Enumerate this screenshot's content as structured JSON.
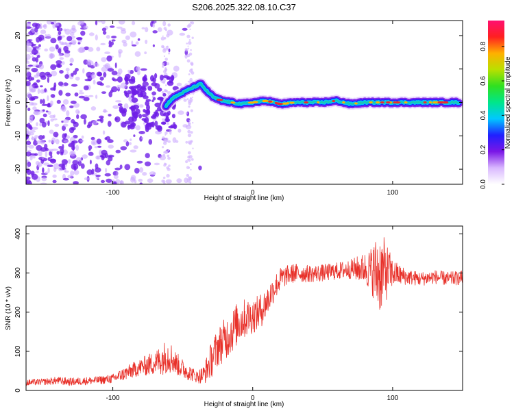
{
  "title": "S206.2025.322.08.10.C37",
  "colors": {
    "axis": "#000000",
    "trace": "#e8312a",
    "scatter": "#6f1fe6",
    "ridge_core": "#18c8b4",
    "ridge_peak": "#ef2a2a",
    "background": "#ffffff"
  },
  "chart_data": [
    {
      "type": "heatmap",
      "name": "spectrogram",
      "xlabel": "Height of straight line (km)",
      "ylabel": "Frequency (Hz)",
      "xlim": [
        -162,
        150
      ],
      "ylim": [
        -24.5,
        24.5
      ],
      "xticks": [
        -100,
        0,
        100
      ],
      "xtick_labels": [
        "-100",
        "0",
        "100"
      ],
      "yticks": [
        -20,
        -10,
        0,
        10,
        20
      ],
      "ytick_labels": [
        "-20",
        "-10",
        "0",
        "10",
        "20"
      ],
      "ridge": {
        "x": [
          -62,
          -58,
          -52,
          -45,
          -40,
          -37,
          -33,
          -28,
          -22,
          -15,
          -8,
          0,
          10,
          20,
          30,
          40,
          50,
          60,
          70,
          80,
          90,
          100,
          110,
          120,
          130,
          140,
          148
        ],
        "y": [
          -1,
          1,
          2.5,
          4,
          5,
          5.5,
          3.5,
          1.5,
          0.5,
          0,
          -0.5,
          0,
          0.5,
          -0.5,
          0,
          0,
          0,
          0.5,
          -0.5,
          0,
          0,
          0,
          0,
          0,
          0,
          0,
          0
        ]
      },
      "colorbar": {
        "label": "Normalized spectral amplitude",
        "range": [
          0,
          0.95
        ],
        "ticks": [
          0,
          0.2,
          0.4,
          0.6,
          0.8
        ],
        "tick_labels": [
          "0.0",
          "0.2",
          "0.4",
          "0.6",
          "0.8"
        ],
        "stops": [
          "#ffffff",
          "#d9b8ff",
          "#7a16e6",
          "#2020ff",
          "#00c8ff",
          "#00e68a",
          "#30e020",
          "#b8e000",
          "#ffb000",
          "#ff2020",
          "#ff1070"
        ]
      }
    },
    {
      "type": "line",
      "name": "snr",
      "xlabel": "Height of straight line (km)",
      "ylabel": "SNR (10 * v/v)",
      "xlim": [
        -162,
        150
      ],
      "ylim": [
        0,
        420
      ],
      "xticks": [
        -100,
        0,
        100
      ],
      "xtick_labels": [
        "-100",
        "0",
        "100"
      ],
      "yticks": [
        0,
        100,
        200,
        300,
        400
      ],
      "ytick_labels": [
        "0",
        "100",
        "200",
        "300",
        "400"
      ],
      "series": [
        {
          "name": "SNR",
          "x": [
            -162,
            -150,
            -140,
            -130,
            -120,
            -110,
            -100,
            -90,
            -80,
            -75,
            -70,
            -65,
            -60,
            -55,
            -50,
            -45,
            -40,
            -35,
            -30,
            -25,
            -20,
            -15,
            -10,
            -5,
            0,
            5,
            10,
            15,
            20,
            25,
            30,
            40,
            50,
            60,
            70,
            80,
            85,
            90,
            95,
            100,
            110,
            120,
            130,
            140,
            150
          ],
          "y": [
            20,
            22,
            25,
            22,
            24,
            26,
            30,
            45,
            60,
            65,
            70,
            80,
            90,
            70,
            55,
            45,
            35,
            40,
            75,
            110,
            130,
            150,
            175,
            185,
            190,
            200,
            225,
            260,
            285,
            295,
            300,
            298,
            300,
            305,
            310,
            312,
            308,
            300,
            305,
            300,
            290,
            285,
            290,
            285,
            288
          ],
          "noise": [
            8,
            8,
            10,
            10,
            10,
            10,
            12,
            18,
            22,
            28,
            30,
            40,
            45,
            30,
            25,
            20,
            15,
            25,
            45,
            50,
            55,
            55,
            55,
            50,
            45,
            45,
            40,
            35,
            30,
            25,
            25,
            22,
            22,
            22,
            25,
            40,
            60,
            110,
            80,
            35,
            20,
            18,
            18,
            18,
            18
          ]
        }
      ]
    }
  ]
}
